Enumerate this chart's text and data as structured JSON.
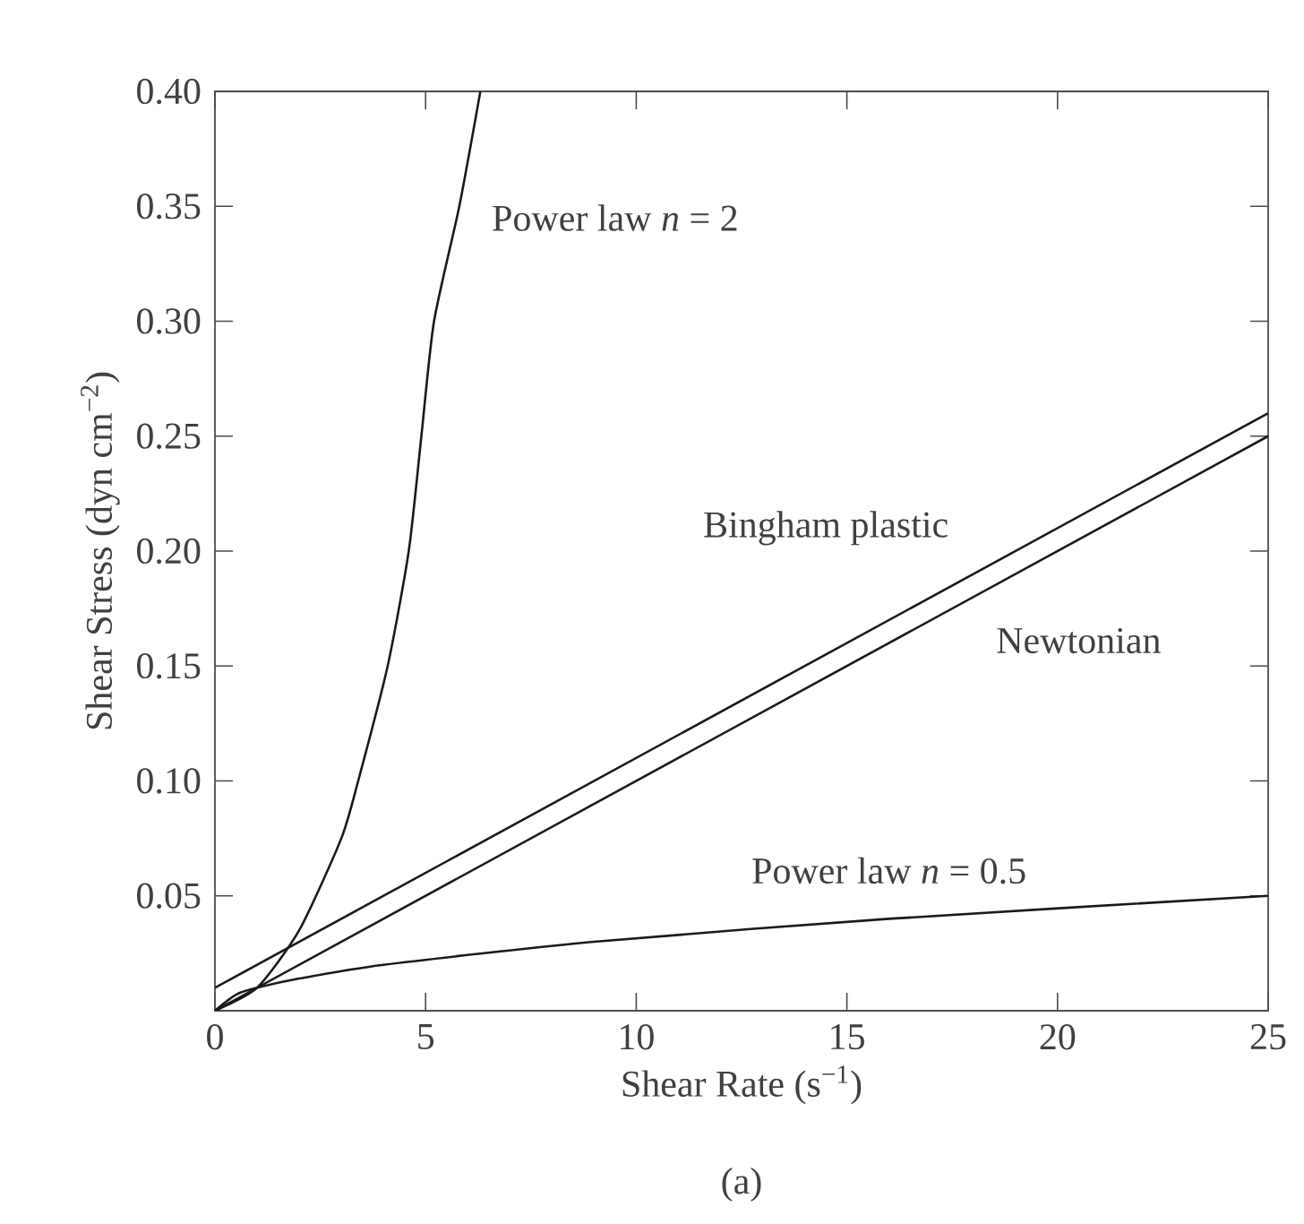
{
  "chart_data": {
    "type": "line",
    "xlabel": "Shear Rate (s$^{−1}$)",
    "ylabel": "Shear Stress (dyn cm$^{−2}$)",
    "xlim": [
      0,
      25
    ],
    "ylim": [
      0,
      0.4
    ],
    "xticks": [
      0,
      5,
      10,
      15,
      20,
      25
    ],
    "yticks": [
      0.05,
      {
        "value": 0.1,
        "label": "0.10"
      },
      0.15,
      {
        "value": 0.2,
        "label": "0.20"
      },
      0.25,
      {
        "value": 0.3,
        "label": "0.30"
      },
      0.35,
      {
        "value": 0.4,
        "label": "0.40"
      }
    ],
    "grid": false,
    "legend": false,
    "marker": "none",
    "line_style": "solid",
    "series": [
      {
        "name": "Power law *n* = 2",
        "color": "#1a1a1a",
        "x": [
          0,
          1,
          2,
          3,
          3.4,
          4.1,
          4.6,
          4.9,
          5.2,
          5.8,
          6.3
        ],
        "values": [
          0,
          0.01,
          0.035,
          0.075,
          0.1,
          0.15,
          0.2,
          0.25,
          0.3,
          0.35,
          0.4
        ]
      },
      {
        "name": "Bingham plastic",
        "color": "#1a1a1a",
        "x": [
          0,
          25
        ],
        "values": [
          0.01,
          0.26
        ]
      },
      {
        "name": "Newtonian",
        "color": "#1a1a1a",
        "x": [
          0,
          25
        ],
        "values": [
          0,
          0.25
        ]
      },
      {
        "name": "Power law *n* = 0.5",
        "color": "#1a1a1a",
        "x": [
          0,
          0.5,
          1,
          2,
          4,
          9,
          16,
          25
        ],
        "values": [
          0,
          0.007,
          0.01,
          0.014,
          0.02,
          0.03,
          0.04,
          0.05
        ]
      }
    ],
    "annotations": [
      "(a)"
    ]
  }
}
